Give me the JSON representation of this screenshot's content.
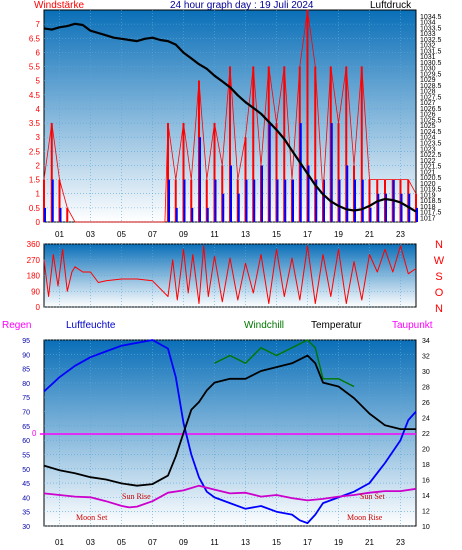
{
  "colors": {
    "wind": "#ff0000",
    "gust": "#0000ff",
    "pressure": "#000000",
    "humidity": "#0000ff",
    "windchill": "#007700",
    "temperature": "#000000",
    "dewpoint": "#cc00cc",
    "rain": "#ff00ff",
    "title": "#000099",
    "grid_bg_top": "#0a6fb8",
    "grid_bg_bottom": "#ffffff"
  },
  "header": {
    "left_label": "Windstärke",
    "title": "24 hour graph day : 19 Juli 2024",
    "right_label": "Luftdruck"
  },
  "wind_dir_labels": [
    "N",
    "W",
    "S",
    "O",
    "N"
  ],
  "bottom_labels": {
    "rain": "Regen",
    "humidity": "Luftfeuchte",
    "windchill": "Windchill",
    "temperature": "Temperatur",
    "dewpoint": "Taupunkt",
    "rain_zero": "0"
  },
  "astro": {
    "sun_rise": "Sun Rise",
    "sun_set": "Sun Set",
    "moon_set": "Moon Set",
    "moon_rise": "Moon Rise"
  },
  "chart_data": [
    {
      "type": "line",
      "title": "24 hour graph day : 19 Juli 2024",
      "x_ticks": [
        "01",
        "03",
        "05",
        "07",
        "09",
        "11",
        "13",
        "15",
        "17",
        "19",
        "21",
        "23"
      ],
      "left_axis": {
        "label": "Windstärke",
        "ylim": [
          0,
          7.5
        ],
        "ticks": [
          "0",
          "0.5",
          "1",
          "1.5",
          "2",
          "2.5",
          "3",
          "3.5",
          "4",
          "4.5",
          "5",
          "5.5",
          "6",
          "6.5",
          "7"
        ]
      },
      "right_axis": {
        "label": "Luftdruck",
        "ylim": [
          1016.6,
          1035
        ],
        "ticks": [
          "1017",
          "1017.5",
          "1018",
          "1018.5",
          "1019",
          "1019.5",
          "1020",
          "1020.5",
          "1021",
          "1021.5",
          "1022",
          "1022.5",
          "1023",
          "1023.5",
          "1024",
          "1024.5",
          "1025",
          "1025.5",
          "1026",
          "1026.5",
          "1027",
          "1027.5",
          "1028",
          "1028.5",
          "1029",
          "1029.5",
          "1030",
          "1030.5",
          "1031",
          "1031.5",
          "1032",
          "1032.5",
          "1033",
          "1033.5",
          "1034",
          "1034.5"
        ]
      },
      "series": [
        {
          "name": "Luftdruck",
          "axis": "right",
          "x": [
            0,
            0.5,
            1,
            1.5,
            2,
            2.5,
            3,
            3.5,
            4,
            4.5,
            5,
            5.5,
            6,
            6.5,
            7,
            7.5,
            8,
            8.5,
            9,
            9.5,
            10,
            10.5,
            11,
            11.5,
            12,
            12.5,
            13,
            13.5,
            14,
            14.5,
            15,
            15.5,
            16,
            16.5,
            17,
            17.5,
            18,
            18.5,
            19,
            19.5,
            20,
            20.5,
            21,
            21.5,
            22,
            22.5,
            23,
            23.5,
            24
          ],
          "values": [
            1033.4,
            1033.3,
            1033.5,
            1033.6,
            1033.8,
            1033.7,
            1033.2,
            1033.0,
            1032.8,
            1032.6,
            1032.5,
            1032.4,
            1032.3,
            1032.5,
            1032.6,
            1032.4,
            1032.3,
            1032.0,
            1031.3,
            1030.8,
            1030.3,
            1029.9,
            1029.3,
            1028.8,
            1028.3,
            1027.6,
            1027.0,
            1026.5,
            1026.0,
            1025.3,
            1024.6,
            1023.8,
            1022.8,
            1021.8,
            1020.8,
            1019.8,
            1019.0,
            1018.4,
            1018.0,
            1017.7,
            1017.6,
            1017.7,
            1018.0,
            1018.4,
            1018.6,
            1018.5,
            1018.3,
            1017.9,
            1017.5
          ]
        },
        {
          "name": "Windstärke",
          "axis": "left",
          "x": [
            0,
            0.5,
            1,
            1.5,
            2,
            7.8,
            8,
            8.5,
            9,
            9.5,
            10,
            10.5,
            11,
            11.5,
            12,
            12.5,
            13,
            13.5,
            14,
            14.5,
            15,
            15.5,
            16,
            16.5,
            17,
            17.5,
            18,
            18.5,
            19,
            19.5,
            20,
            20.5,
            21,
            21.5,
            22,
            22.5,
            23,
            23.5,
            24
          ],
          "values": [
            1.5,
            3.5,
            1.5,
            0.5,
            0,
            0,
            3.5,
            1.5,
            3.5,
            1.5,
            5,
            1.5,
            3.5,
            2,
            5.5,
            1.5,
            3,
            5.5,
            2,
            5.5,
            3.5,
            5.5,
            1.5,
            5.5,
            7.5,
            5.5,
            1,
            5.5,
            3.5,
            5.5,
            2,
            5.5,
            1.5,
            1.5,
            1.5,
            1.5,
            1.5,
            1.5,
            1
          ]
        },
        {
          "name": "Windböen",
          "axis": "left",
          "x": [
            0,
            0.5,
            1,
            1.5,
            2,
            7.8,
            8,
            8.5,
            9,
            9.5,
            10,
            10.5,
            11,
            11.5,
            12,
            12.5,
            13,
            13.5,
            14,
            14.5,
            15,
            15.5,
            16,
            16.5,
            17,
            17.5,
            18,
            18.5,
            19,
            19.5,
            20,
            20.5,
            21,
            21.5,
            22,
            22.5,
            23,
            23.5,
            24
          ],
          "values": [
            0.5,
            1.5,
            0.5,
            0,
            0,
            0,
            1.5,
            0.5,
            1.5,
            0.5,
            3,
            0.5,
            1.5,
            1,
            2,
            1,
            1.5,
            1.5,
            2,
            3.5,
            1.5,
            1.5,
            1.5,
            3.5,
            2,
            1.5,
            1.5,
            3.5,
            1.5,
            2,
            1.5,
            1.5,
            0.5,
            1,
            1,
            1.5,
            1,
            1,
            0.5
          ]
        }
      ]
    },
    {
      "type": "line",
      "left_axis": {
        "ylim": [
          0,
          360
        ],
        "ticks": [
          "0",
          "90",
          "180",
          "270",
          "360"
        ]
      },
      "right_labels": [
        "N",
        "W",
        "S",
        "O",
        "N"
      ],
      "series": [
        {
          "name": "Windrichtung",
          "x": [
            0,
            0.3,
            0.6,
            0.9,
            1.2,
            1.5,
            1.8,
            2,
            2.5,
            3,
            3.5,
            4,
            5,
            6,
            7,
            8,
            8.3,
            8.6,
            9,
            9.3,
            9.6,
            10,
            10.3,
            10.6,
            11,
            11.5,
            12,
            12.5,
            13,
            13.5,
            14,
            14.5,
            15,
            15.5,
            16,
            16.5,
            17,
            17.5,
            18,
            18.5,
            19,
            19.5,
            20,
            20.5,
            21,
            21.5,
            22,
            22.5,
            23,
            23.5,
            24
          ],
          "values": [
            270,
            60,
            300,
            120,
            330,
            90,
            200,
            230,
            200,
            200,
            140,
            150,
            160,
            160,
            150,
            60,
            270,
            40,
            330,
            80,
            300,
            20,
            350,
            60,
            290,
            30,
            280,
            40,
            250,
            80,
            300,
            20,
            330,
            60,
            280,
            40,
            350,
            20,
            300,
            60,
            330,
            20,
            260,
            40,
            300,
            200,
            330,
            200,
            350,
            190,
            220
          ]
        }
      ]
    },
    {
      "type": "line",
      "x_ticks": [
        "01",
        "03",
        "05",
        "07",
        "09",
        "11",
        "13",
        "15",
        "17",
        "19",
        "21",
        "23"
      ],
      "left_axis": {
        "label": "Luftfeuchte",
        "ylim": [
          30,
          95
        ],
        "ticks": [
          "30",
          "35",
          "40",
          "45",
          "50",
          "55",
          "60",
          "65",
          "70",
          "75",
          "80",
          "85",
          "90",
          "95"
        ]
      },
      "right_axis": {
        "label": "Temperatur",
        "ylim": [
          10,
          34
        ],
        "ticks": [
          "10",
          "12",
          "14",
          "16",
          "18",
          "20",
          "22",
          "24",
          "26",
          "28",
          "30",
          "32",
          "34"
        ]
      },
      "rain_level": 0,
      "series": [
        {
          "name": "Luftfeuchte",
          "axis": "left",
          "x": [
            0,
            1,
            2,
            3,
            4,
            5,
            6,
            7,
            8,
            8.5,
            9,
            9.5,
            10,
            10.5,
            11,
            12,
            13,
            14,
            15,
            16,
            16.5,
            17,
            17.5,
            18,
            19,
            20,
            21,
            22,
            23,
            23.5,
            24
          ],
          "values": [
            77,
            82,
            86,
            89,
            91,
            93,
            94,
            95,
            92,
            82,
            66,
            55,
            47,
            42,
            40,
            38,
            36,
            37,
            35,
            34,
            32,
            31,
            34,
            38,
            40,
            42,
            45,
            52,
            60,
            67,
            70
          ]
        },
        {
          "name": "Windchill",
          "axis": "right",
          "x": [
            11,
            12,
            13,
            14,
            15,
            16,
            17,
            17.5,
            18,
            19,
            20
          ],
          "values": [
            31,
            32,
            31,
            33,
            32,
            33,
            34,
            33,
            29,
            29,
            28
          ]
        },
        {
          "name": "Temperatur",
          "axis": "right",
          "x": [
            0,
            1,
            2,
            3,
            4,
            5,
            6,
            7,
            8,
            8.5,
            9,
            9.5,
            10,
            10.5,
            11,
            12,
            13,
            14,
            15,
            16,
            16.5,
            17,
            17.5,
            18,
            19,
            20,
            21,
            22,
            23,
            23.5,
            24
          ],
          "values": [
            17.8,
            17.2,
            16.8,
            16.3,
            16.0,
            15.5,
            15.2,
            15.4,
            16.5,
            19,
            22,
            25,
            26,
            27.5,
            28.5,
            29,
            29,
            30,
            30.5,
            31,
            31.5,
            32,
            31,
            28.5,
            28,
            26.5,
            24.5,
            23,
            22.5,
            22.5,
            22.5
          ]
        },
        {
          "name": "Taupunkt",
          "axis": "right",
          "x": [
            0,
            1,
            2,
            3,
            4,
            5,
            5.5,
            6,
            7,
            8,
            9,
            10,
            11,
            12,
            13,
            14,
            15,
            16,
            17,
            18,
            19,
            20,
            21,
            22,
            23,
            24
          ],
          "values": [
            14.2,
            14.0,
            13.8,
            13.7,
            13.2,
            12.6,
            12.4,
            12.5,
            13.2,
            14.3,
            14.6,
            15.2,
            14.7,
            14.2,
            14.3,
            13.8,
            14.0,
            13.6,
            13.3,
            13.5,
            13.8,
            14.0,
            14.3,
            14.5,
            14.5,
            14.8
          ]
        }
      ]
    }
  ]
}
